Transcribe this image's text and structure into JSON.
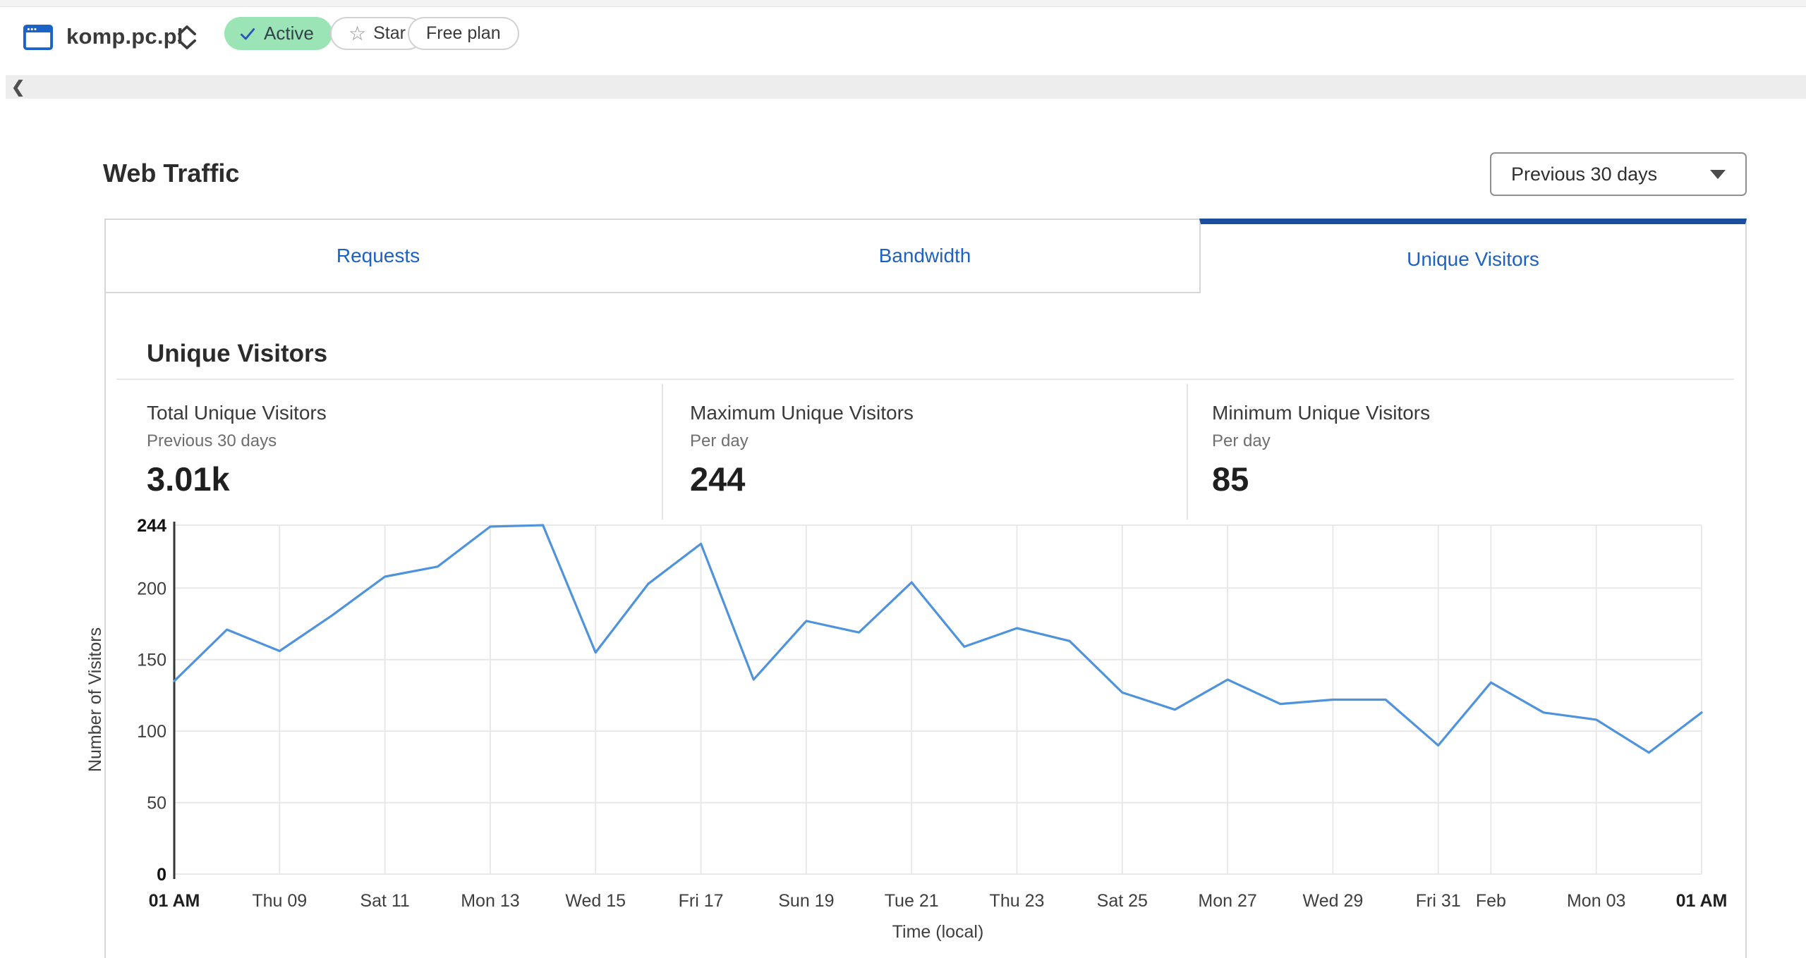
{
  "header": {
    "site_name": "komp.pc.pl",
    "status_badge": "Active",
    "star_label": "Star",
    "plan_label": "Free plan"
  },
  "icons": {
    "collapse": "❮",
    "star": "☆"
  },
  "page": {
    "title": "Web Traffic",
    "range_value": "Previous 30 days"
  },
  "tabs": [
    {
      "label": "Requests",
      "active": false
    },
    {
      "label": "Bandwidth",
      "active": false
    },
    {
      "label": "Unique Visitors",
      "active": true
    }
  ],
  "section": {
    "title": "Unique Visitors"
  },
  "stats": [
    {
      "title": "Total Unique Visitors",
      "subtitle": "Previous 30 days",
      "value": "3.01k"
    },
    {
      "title": "Maximum Unique Visitors",
      "subtitle": "Per day",
      "value": "244"
    },
    {
      "title": "Minimum Unique Visitors",
      "subtitle": "Per day",
      "value": "85"
    }
  ],
  "colors": {
    "line": "#4e93dc",
    "active_tab_bar": "#1b4f9e",
    "tab_text": "#1d62c2",
    "badge_green": "#9be4b6",
    "site_icon_blue": "#1b63c4",
    "gridline": "#e8e8e8",
    "axis": "#363636"
  },
  "chart_data": {
    "type": "line",
    "title": "Unique Visitors",
    "xlabel": "Time (local)",
    "ylabel": "Number of Visitors",
    "ylim": [
      0,
      244
    ],
    "grid": true,
    "legend": "none",
    "y_ticks": [
      {
        "value": 0,
        "bold": true
      },
      {
        "value": 50,
        "bold": false
      },
      {
        "value": 100,
        "bold": false
      },
      {
        "value": 150,
        "bold": false
      },
      {
        "value": 200,
        "bold": false
      },
      {
        "value": 244,
        "bold": true
      }
    ],
    "x_ticks": [
      {
        "label": "01 AM",
        "day": 0,
        "bold": true
      },
      {
        "label": "Thu 09",
        "day": 2,
        "bold": false
      },
      {
        "label": "Sat 11",
        "day": 4,
        "bold": false
      },
      {
        "label": "Mon 13",
        "day": 6,
        "bold": false
      },
      {
        "label": "Wed 15",
        "day": 8,
        "bold": false
      },
      {
        "label": "Fri 17",
        "day": 10,
        "bold": false
      },
      {
        "label": "Sun 19",
        "day": 12,
        "bold": false
      },
      {
        "label": "Tue 21",
        "day": 14,
        "bold": false
      },
      {
        "label": "Thu 23",
        "day": 16,
        "bold": false
      },
      {
        "label": "Sat 25",
        "day": 18,
        "bold": false
      },
      {
        "label": "Mon 27",
        "day": 20,
        "bold": false
      },
      {
        "label": "Wed 29",
        "day": 22,
        "bold": false
      },
      {
        "label": "Fri 31",
        "day": 24,
        "bold": false
      },
      {
        "label": "Feb",
        "day": 25,
        "bold": false
      },
      {
        "label": "Mon 03",
        "day": 27,
        "bold": false
      },
      {
        "label": "01 AM",
        "day": 29,
        "bold": true
      }
    ],
    "series": [
      {
        "name": "Unique Visitors",
        "color": "#4e93dc",
        "dates": [
          "Jan 07",
          "Jan 08",
          "Jan 09",
          "Jan 10",
          "Jan 11",
          "Jan 12",
          "Jan 13",
          "Jan 14",
          "Jan 15",
          "Jan 16",
          "Jan 17",
          "Jan 18",
          "Jan 19",
          "Jan 20",
          "Jan 21",
          "Jan 22",
          "Jan 23",
          "Jan 24",
          "Jan 25",
          "Jan 26",
          "Jan 27",
          "Jan 28",
          "Jan 29",
          "Jan 30",
          "Jan 31",
          "Feb 01",
          "Feb 02",
          "Feb 03",
          "Feb 04",
          "Feb 05"
        ],
        "values": [
          135,
          171,
          156,
          181,
          208,
          215,
          243,
          244,
          155,
          203,
          231,
          136,
          177,
          169,
          204,
          159,
          172,
          163,
          127,
          115,
          136,
          119,
          122,
          122,
          90,
          134,
          113,
          108,
          85,
          113
        ]
      }
    ]
  }
}
